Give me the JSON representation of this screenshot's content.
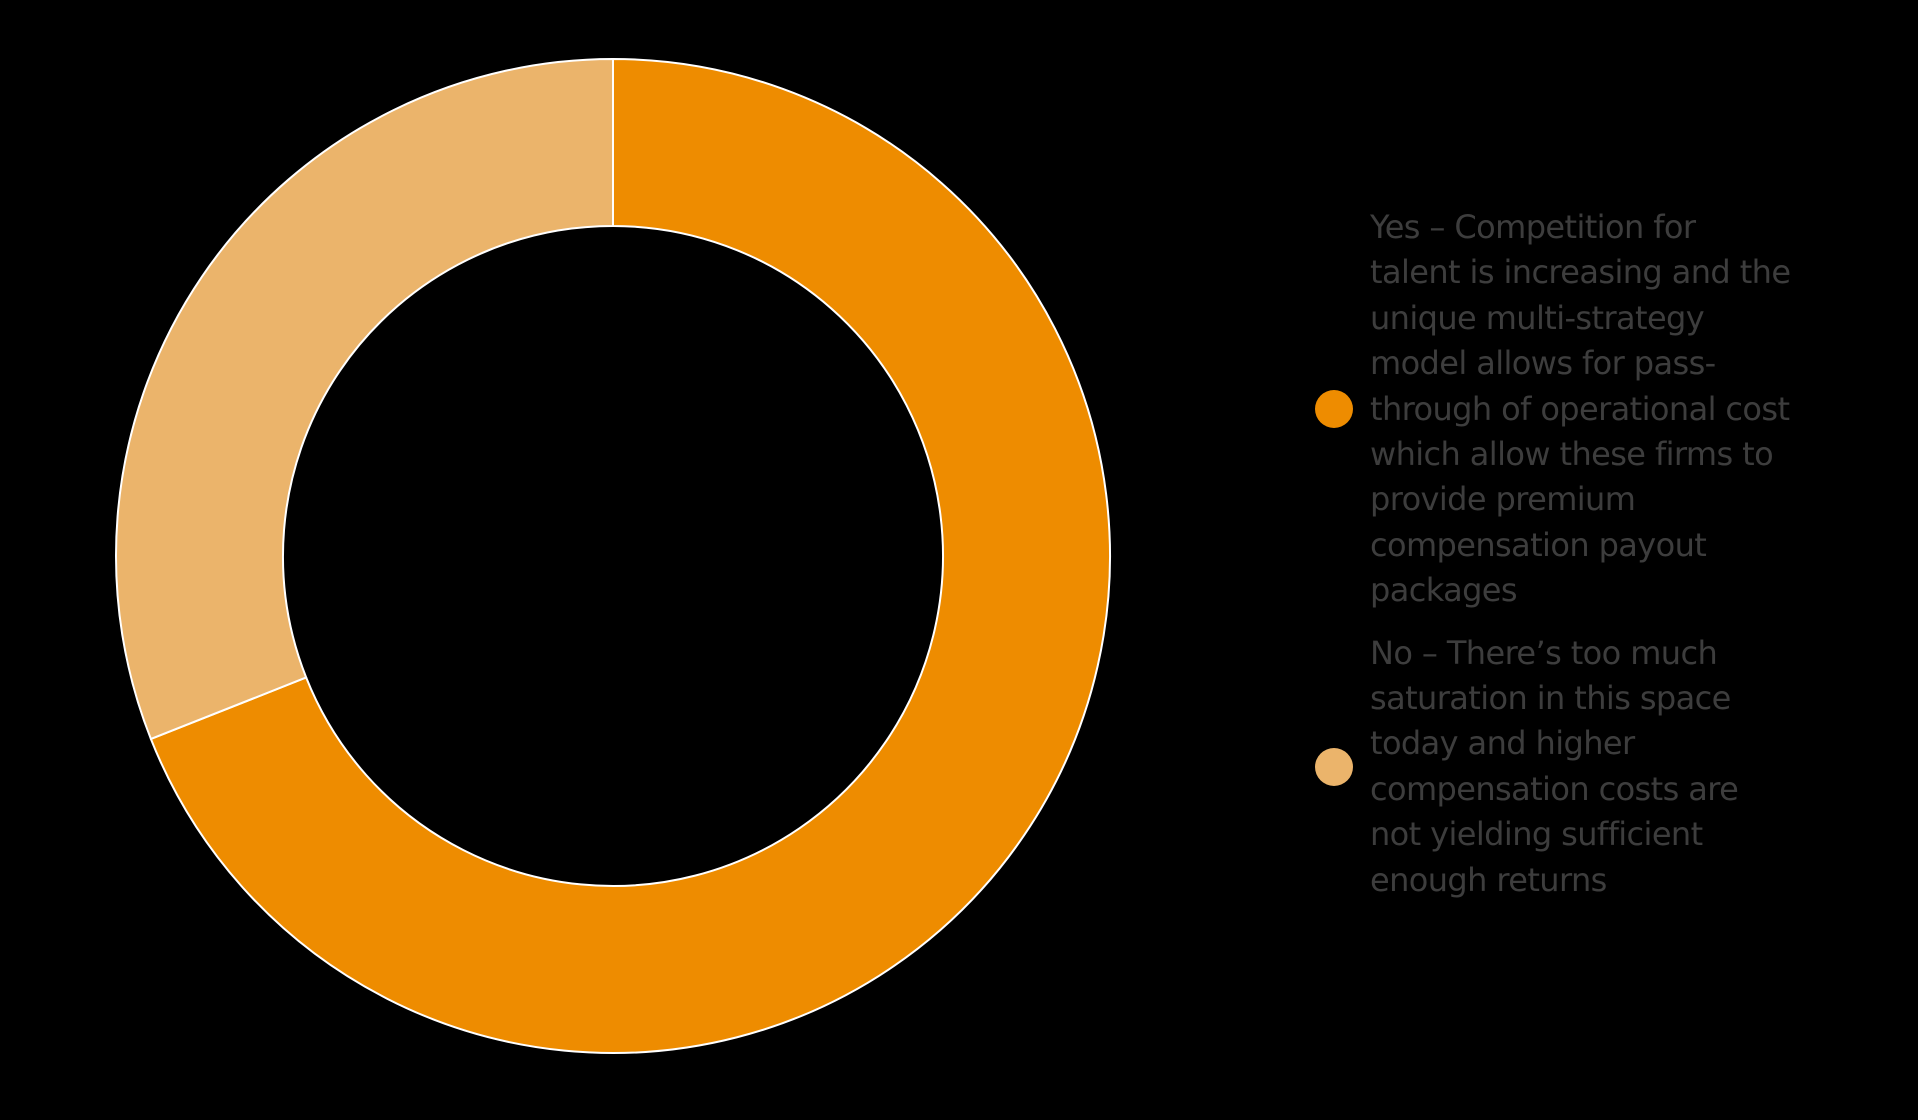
{
  "chart_data": {
    "type": "pie",
    "variant": "donut",
    "categories": [
      "Yes – Competition for\ntalent is increasing and the\nunique multi-strategy\nmodel allows for pass-\nthrough of operational cost\nwhich allow these firms to\nprovide premium\ncompensation payout\npackages",
      "No – There’s too much\nsaturation in this space\ntoday and higher\ncompensation costs are\nnot yielding sufficient\nenough returns"
    ],
    "values": [
      69,
      31
    ],
    "colors": [
      "#EE8C00",
      "#EBB46B"
    ],
    "separator_color": "#FFFFFF",
    "title": "",
    "legend_position": "right"
  }
}
